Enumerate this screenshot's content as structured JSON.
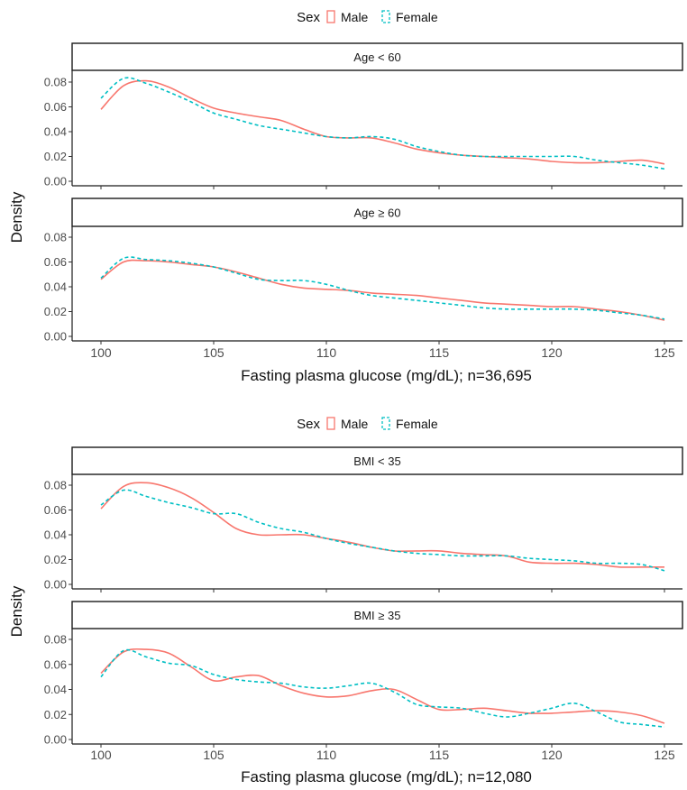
{
  "legend": {
    "title": "Sex",
    "entries": [
      {
        "label": "Male",
        "color": "#F8766D",
        "linetype": "solid"
      },
      {
        "label": "Female",
        "color": "#00BFC4",
        "linetype": "dashed"
      }
    ]
  },
  "chart_data": [
    {
      "type": "line",
      "xlabel": "Fasting plasma glucose (mg/dL); n=36,695",
      "ylabel": "Density",
      "xlim": [
        100,
        125
      ],
      "ylim": [
        0,
        0.08
      ],
      "xticks": [
        "100",
        "105",
        "110",
        "115",
        "120",
        "125"
      ],
      "yticks": [
        "0.00",
        "0.02",
        "0.04",
        "0.06",
        "0.08"
      ],
      "x": [
        100,
        101,
        102,
        103,
        104,
        105,
        106,
        107,
        108,
        109,
        110,
        111,
        112,
        113,
        114,
        115,
        116,
        117,
        118,
        119,
        120,
        121,
        122,
        123,
        124,
        125
      ],
      "panels": [
        {
          "strip": "Age < 60",
          "series": [
            {
              "name": "Male",
              "values": [
                0.058,
                0.077,
                0.081,
                0.076,
                0.067,
                0.059,
                0.055,
                0.052,
                0.049,
                0.042,
                0.036,
                0.035,
                0.035,
                0.031,
                0.026,
                0.023,
                0.021,
                0.02,
                0.019,
                0.018,
                0.016,
                0.015,
                0.015,
                0.016,
                0.017,
                0.014
              ]
            },
            {
              "name": "Female",
              "values": [
                0.067,
                0.083,
                0.079,
                0.072,
                0.064,
                0.055,
                0.05,
                0.045,
                0.042,
                0.039,
                0.036,
                0.035,
                0.036,
                0.034,
                0.028,
                0.024,
                0.021,
                0.02,
                0.02,
                0.02,
                0.02,
                0.02,
                0.017,
                0.015,
                0.013,
                0.01
              ]
            }
          ]
        },
        {
          "strip": "Age ≥ 60",
          "series": [
            {
              "name": "Male",
              "values": [
                0.046,
                0.06,
                0.061,
                0.06,
                0.058,
                0.056,
                0.052,
                0.047,
                0.042,
                0.039,
                0.038,
                0.037,
                0.035,
                0.034,
                0.033,
                0.031,
                0.029,
                0.027,
                0.026,
                0.025,
                0.024,
                0.024,
                0.022,
                0.02,
                0.017,
                0.013
              ]
            },
            {
              "name": "Female",
              "values": [
                0.047,
                0.063,
                0.062,
                0.061,
                0.059,
                0.056,
                0.051,
                0.046,
                0.045,
                0.045,
                0.042,
                0.037,
                0.033,
                0.031,
                0.029,
                0.027,
                0.025,
                0.023,
                0.022,
                0.022,
                0.022,
                0.022,
                0.021,
                0.019,
                0.017,
                0.014
              ]
            }
          ]
        }
      ]
    },
    {
      "type": "line",
      "xlabel": "Fasting plasma glucose (mg/dL); n=12,080",
      "ylabel": "Density",
      "xlim": [
        100,
        125
      ],
      "ylim": [
        0,
        0.08
      ],
      "xticks": [
        "100",
        "105",
        "110",
        "115",
        "120",
        "125"
      ],
      "yticks": [
        "0.00",
        "0.02",
        "0.04",
        "0.06",
        "0.08"
      ],
      "x": [
        100,
        101,
        102,
        103,
        104,
        105,
        106,
        107,
        108,
        109,
        110,
        111,
        112,
        113,
        114,
        115,
        116,
        117,
        118,
        119,
        120,
        121,
        122,
        123,
        124,
        125
      ],
      "panels": [
        {
          "strip": "BMI < 35",
          "series": [
            {
              "name": "Male",
              "values": [
                0.061,
                0.079,
                0.082,
                0.078,
                0.07,
                0.058,
                0.045,
                0.04,
                0.04,
                0.04,
                0.037,
                0.034,
                0.03,
                0.027,
                0.027,
                0.027,
                0.025,
                0.024,
                0.023,
                0.018,
                0.017,
                0.017,
                0.016,
                0.014,
                0.014,
                0.014
              ]
            },
            {
              "name": "Female",
              "values": [
                0.064,
                0.076,
                0.071,
                0.066,
                0.062,
                0.057,
                0.057,
                0.05,
                0.045,
                0.042,
                0.037,
                0.033,
                0.03,
                0.027,
                0.025,
                0.024,
                0.023,
                0.023,
                0.023,
                0.021,
                0.02,
                0.019,
                0.017,
                0.017,
                0.016,
                0.011
              ]
            }
          ]
        },
        {
          "strip": "BMI ≥ 35",
          "series": [
            {
              "name": "Male",
              "values": [
                0.053,
                0.07,
                0.072,
                0.069,
                0.058,
                0.047,
                0.05,
                0.051,
                0.043,
                0.037,
                0.034,
                0.035,
                0.039,
                0.04,
                0.032,
                0.024,
                0.024,
                0.025,
                0.023,
                0.021,
                0.021,
                0.022,
                0.023,
                0.022,
                0.019,
                0.013
              ]
            },
            {
              "name": "Female",
              "values": [
                0.05,
                0.071,
                0.066,
                0.061,
                0.059,
                0.052,
                0.048,
                0.046,
                0.045,
                0.042,
                0.041,
                0.043,
                0.045,
                0.038,
                0.028,
                0.026,
                0.025,
                0.021,
                0.018,
                0.021,
                0.025,
                0.029,
                0.022,
                0.014,
                0.012,
                0.01
              ]
            }
          ]
        }
      ]
    }
  ]
}
